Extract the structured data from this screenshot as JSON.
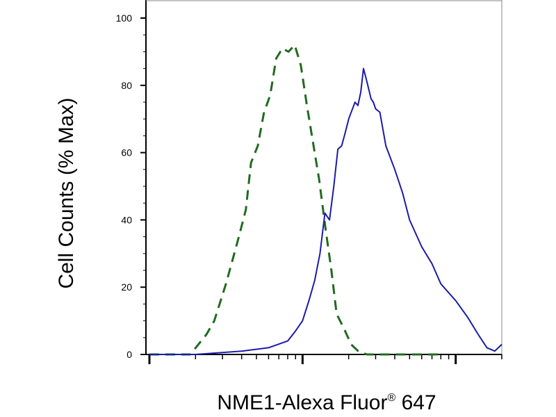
{
  "chart_data": {
    "type": "line",
    "xscale": "log",
    "xlabel": "NME1-Alexa Fluor",
    "xlabel_superscript": "®",
    "xlabel_suffix": " 647",
    "ylabel": "Cell Counts (% Max)",
    "ylim": [
      0,
      100
    ],
    "yticks": [
      0,
      20,
      40,
      60,
      80,
      100
    ],
    "xtick_labels_shown": false,
    "grid": false,
    "legend": "none",
    "series": [
      {
        "style": "dashed",
        "color": "#1f6b1f",
        "x": [
          100,
          123,
          151,
          185,
          209,
          236,
          265,
          292,
          316,
          339,
          384,
          426,
          461,
          510,
          560,
          614,
          673,
          738,
          810,
          888,
          974,
          1068,
          1171,
          1283,
          1407,
          1542,
          1670,
          1852,
          2076,
          2306,
          2637,
          3168,
          3762,
          5000,
          8000
        ],
        "y": [
          0,
          0,
          0,
          0,
          3,
          6,
          10,
          16,
          21,
          26,
          35,
          43,
          57,
          62,
          72,
          77,
          88,
          91,
          90,
          92,
          86,
          74,
          63,
          52,
          38,
          25,
          12,
          8,
          3,
          1,
          0,
          0,
          0,
          0,
          0
        ]
      },
      {
        "style": "solid",
        "color": "#1a1aaa",
        "x": [
          100,
          200,
          400,
          600,
          800,
          900,
          1000,
          1100,
          1200,
          1300,
          1400,
          1500,
          1600,
          1700,
          1800,
          1900,
          2000,
          2200,
          2300,
          2400,
          2500,
          2600,
          2700,
          2800,
          2900,
          3000,
          3200,
          3500,
          4000,
          4500,
          5000,
          6000,
          7000,
          8000,
          10000,
          12000,
          14000,
          16000,
          18000,
          20000
        ],
        "y": [
          0,
          0,
          1,
          2,
          4,
          7,
          10,
          16,
          22,
          30,
          42,
          40,
          50,
          61,
          62,
          66,
          70,
          75,
          74,
          78,
          85,
          82,
          79,
          76,
          75,
          73,
          72,
          62,
          55,
          48,
          40,
          32,
          27,
          21,
          16,
          11,
          6,
          2,
          1,
          3
        ]
      }
    ]
  }
}
